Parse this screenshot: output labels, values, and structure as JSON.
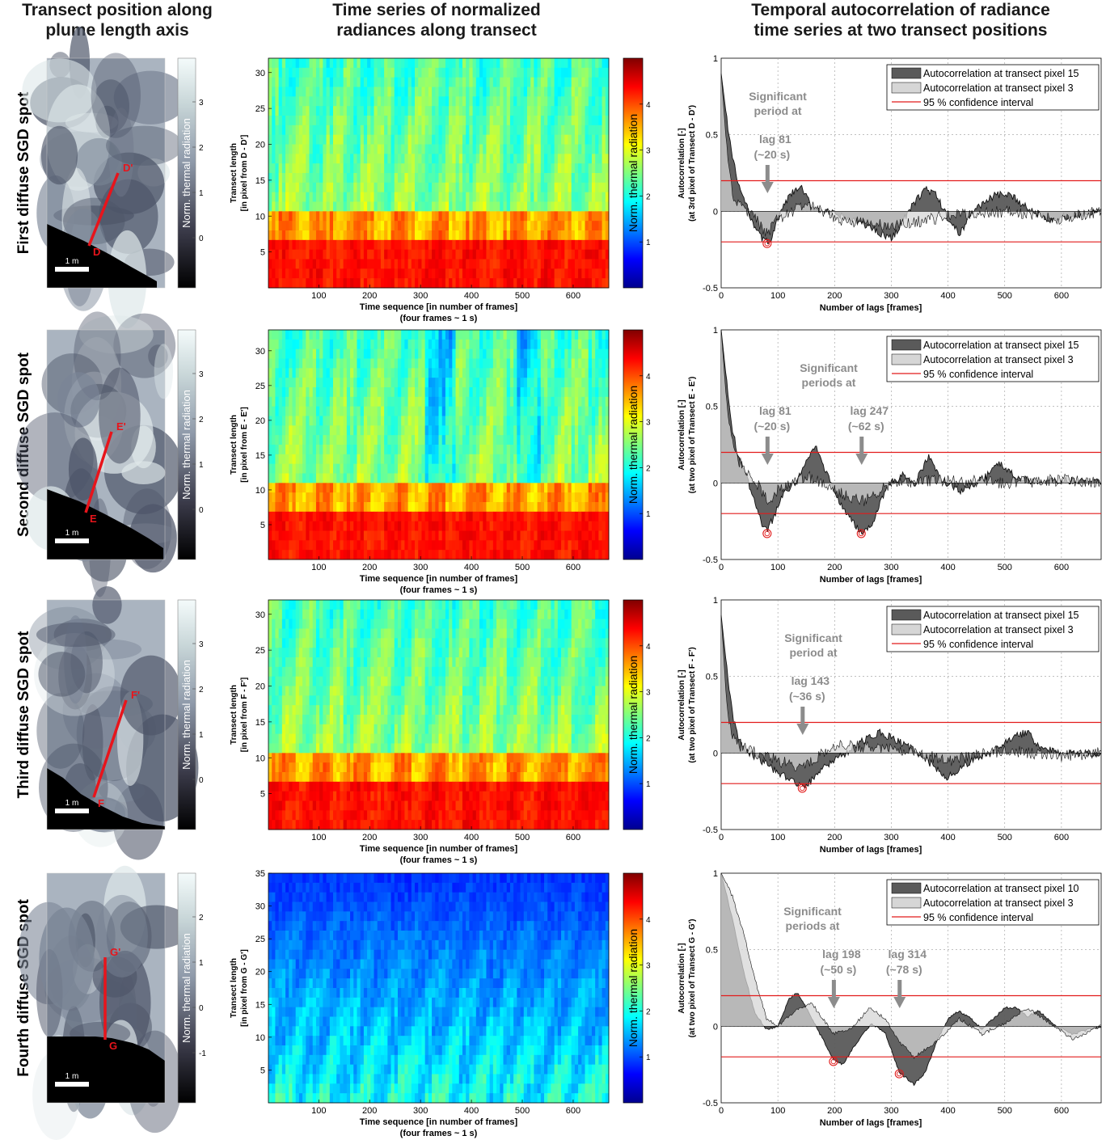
{
  "column_titles": [
    [
      "Transect position along",
      "plume length axis"
    ],
    [
      "Time series of normalized",
      "radiances along transect"
    ],
    [
      "Temporal autocorrelation of radiance",
      "time series at two transect positions"
    ]
  ],
  "scale_bar_label": "1 m",
  "image_colorbar_label": "Norm. thermal radiation",
  "heatmap_colorbar_label": "Norm. thermal radiation",
  "heatmap_xlabel": "Time sequence [in number of frames]",
  "heatmap_xlabel2": "(four frames ~ 1 s)",
  "heatmap_ylabel1": "Transect length",
  "acf_xlabel": "Number of lags [frames]",
  "acf_ylabel1": "Autocorrelation [-]",
  "colors": {
    "transect_line": "#e8141b",
    "confidence_line": "#e21b1b",
    "acf_main_fill": "#5a5a5a",
    "acf_ref_fill": "#d6d6d6",
    "annotation_gray": "#8c8c8c"
  },
  "rows": [
    {
      "spot_label": "First diffuse SGD spot",
      "start_label": "D",
      "end_label": "D'",
      "image_cbar_ticks": [
        "0",
        "1",
        "2",
        "3"
      ],
      "heatmap_ylabel2": "[in pixel from D - D']",
      "acf_ylabel2": "(at 3rd pixel of Transect D - D')",
      "annotation_lines": [
        "Significant",
        "period at"
      ],
      "lags": [
        {
          "lag": 81,
          "label1": "lag 81",
          "label2": "(~20 s)"
        }
      ]
    },
    {
      "spot_label": "Second diffuse SGD spot",
      "start_label": "E",
      "end_label": "E'",
      "image_cbar_ticks": [
        "0",
        "1",
        "2",
        "3"
      ],
      "heatmap_ylabel2": "[in pixel from E - E']",
      "acf_ylabel2": "(at two pixel of Transect E - E')",
      "annotation_lines": [
        "Significant",
        "periods at"
      ],
      "lags": [
        {
          "lag": 81,
          "label1": "lag 81",
          "label2": "(~20 s)"
        },
        {
          "lag": 247,
          "label1": "lag 247",
          "label2": "(~62 s)"
        }
      ]
    },
    {
      "spot_label": "Third diffuse SGD spot",
      "start_label": "F",
      "end_label": "F'",
      "image_cbar_ticks": [
        "0",
        "1",
        "2",
        "3"
      ],
      "heatmap_ylabel2": "[in pixel from F - F']",
      "acf_ylabel2": "(at two pixel of Transect F - F')",
      "annotation_lines": [
        "Significant",
        "period at"
      ],
      "lags": [
        {
          "lag": 143,
          "label1": "lag 143",
          "label2": "(~36 s)"
        }
      ]
    },
    {
      "spot_label": "Fourth diffuse SGD spot",
      "start_label": "G",
      "end_label": "G'",
      "image_cbar_ticks": [
        "-1",
        "0",
        "1",
        "2"
      ],
      "heatmap_ylabel2": "[in pixel from G - G']",
      "acf_ylabel2": "(at two pixel of Transect G - G')",
      "annotation_lines": [
        "Significant",
        "periods at"
      ],
      "lags": [
        {
          "lag": 198,
          "label1": "lag 198",
          "label2": "(~50 s)"
        },
        {
          "lag": 314,
          "label1": "lag 314",
          "label2": "(~78 s)"
        }
      ]
    }
  ],
  "chart_data": [
    {
      "type": "heatmap",
      "description": "Time series of normalized radiances along transect (one per SGD spot)",
      "xlabel": "Time sequence [in number of frames]",
      "x_ticks": [
        100,
        200,
        300,
        400,
        500,
        600
      ],
      "xlim": [
        1,
        670
      ],
      "colorbar_label": "Norm. thermal radiation",
      "colorbar_ticks": [
        1,
        2,
        3,
        4
      ],
      "colorbar_range": [
        0,
        5
      ],
      "panels": [
        {
          "ylabel": "Transect length [in pixel from D - D']",
          "y_ticks": [
            5,
            10,
            15,
            20,
            25,
            30
          ],
          "ylim": [
            0,
            32
          ]
        },
        {
          "ylabel": "Transect length [in pixel from E - E']",
          "y_ticks": [
            5,
            10,
            15,
            20,
            25,
            30
          ],
          "ylim": [
            0,
            33
          ]
        },
        {
          "ylabel": "Transect length [in pixel from F - F']",
          "y_ticks": [
            5,
            10,
            15,
            20,
            25,
            30
          ],
          "ylim": [
            0,
            32
          ]
        },
        {
          "ylabel": "Transect length [in pixel from G - G']",
          "y_ticks": [
            5,
            10,
            15,
            20,
            25,
            30,
            35
          ],
          "ylim": [
            0,
            35
          ]
        }
      ]
    },
    {
      "type": "area",
      "description": "Temporal autocorrelation of radiance time series at two transect positions",
      "xlabel": "Number of lags [frames]",
      "ylabel": "Autocorrelation [-]",
      "x_ticks": [
        0,
        100,
        200,
        300,
        400,
        500,
        600
      ],
      "xlim": [
        0,
        670
      ],
      "y_ticks": [
        -0.5,
        0,
        0.5,
        1
      ],
      "ylim": [
        -0.5,
        1
      ],
      "confidence_interval": [
        -0.2,
        0.2
      ],
      "panels": [
        {
          "legend": [
            "Autocorrelation at  transect pixel 15",
            "Autocorrelation at  transect pixel 3",
            "95 % confidence interval"
          ],
          "significant_lags": [
            81
          ],
          "series": [
            {
              "name": "Autocorrelation at  transect pixel 15",
              "lags": [
                0,
                10,
                20,
                30,
                40,
                50,
                60,
                70,
                81,
                90,
                100,
                120,
                140,
                160,
                200,
                250,
                300,
                340,
                360,
                380,
                400,
                420,
                440,
                460,
                480,
                500,
                520,
                540,
                580,
                620,
                670
              ],
              "values": [
                0.9,
                0.6,
                0.35,
                0.18,
                0.08,
                -0.02,
                -0.1,
                -0.17,
                -0.2,
                -0.17,
                -0.05,
                0.1,
                0.16,
                0.03,
                -0.02,
                -0.08,
                -0.18,
                0.05,
                0.15,
                0.1,
                -0.05,
                -0.15,
                -0.02,
                0.05,
                0.1,
                0.11,
                0.08,
                0.02,
                -0.05,
                -0.03,
                0.0
              ]
            },
            {
              "name": "Autocorrelation at  transect pixel 3",
              "lags": [
                0,
                10,
                20,
                30,
                40,
                60,
                81,
                100,
                150,
                200,
                300,
                400,
                500,
                600,
                670
              ],
              "values": [
                0.9,
                0.4,
                0.1,
                0.05,
                0.02,
                -0.05,
                -0.15,
                -0.05,
                0.05,
                -0.05,
                -0.1,
                -0.03,
                0.0,
                -0.05,
                0.0
              ]
            }
          ]
        },
        {
          "legend": [
            "Autocorrelation at  transect pixel 15",
            "Autocorrelation at  transect pixel 3",
            "95 % confidence interval"
          ],
          "significant_lags": [
            81,
            247
          ],
          "series": [
            {
              "name": "Autocorrelation at  transect pixel 15",
              "lags": [
                0,
                10,
                20,
                30,
                40,
                50,
                60,
                70,
                81,
                95,
                110,
                130,
                150,
                165,
                180,
                200,
                220,
                247,
                265,
                280,
                300,
                320,
                340,
                365,
                390,
                420,
                450,
                470,
                490,
                520,
                560,
                600,
                670
              ],
              "values": [
                1.0,
                0.65,
                0.35,
                0.18,
                0.08,
                -0.02,
                -0.12,
                -0.25,
                -0.32,
                -0.2,
                -0.06,
                0.0,
                0.14,
                0.24,
                0.12,
                -0.05,
                -0.2,
                -0.32,
                -0.28,
                -0.12,
                0.0,
                0.05,
                -0.02,
                0.17,
                0.02,
                -0.05,
                0.0,
                0.05,
                0.13,
                0.04,
                0.0,
                0.02,
                0.0
              ]
            },
            {
              "name": "Autocorrelation at  transect pixel 3",
              "lags": [
                0,
                10,
                20,
                30,
                40,
                60,
                81,
                100,
                150,
                200,
                250,
                300,
                400,
                500,
                600,
                670
              ],
              "values": [
                1.0,
                0.5,
                0.25,
                0.15,
                0.1,
                0.02,
                -0.12,
                -0.05,
                0.05,
                -0.05,
                -0.12,
                0.0,
                0.02,
                0.0,
                0.02,
                0.0
              ]
            }
          ]
        },
        {
          "legend": [
            "Autocorrelation at  transect pixel 15",
            "Autocorrelation at  transect pixel 3",
            "95 % confidence interval"
          ],
          "significant_lags": [
            143
          ],
          "series": [
            {
              "name": "Autocorrelation at  transect pixel 15",
              "lags": [
                0,
                10,
                20,
                30,
                40,
                50,
                70,
                90,
                110,
                130,
                143,
                160,
                180,
                200,
                220,
                250,
                280,
                300,
                340,
                380,
                400,
                440,
                480,
                500,
                520,
                540,
                560,
                600,
                640,
                670
              ],
              "values": [
                0.9,
                0.55,
                0.25,
                0.1,
                0.03,
                0.0,
                -0.05,
                -0.1,
                -0.15,
                -0.2,
                -0.22,
                -0.18,
                -0.1,
                -0.05,
                0.0,
                0.08,
                0.13,
                0.1,
                0.02,
                -0.1,
                -0.16,
                -0.05,
                0.0,
                0.08,
                0.12,
                0.13,
                0.05,
                0.0,
                0.0,
                0.0
              ]
            },
            {
              "name": "Autocorrelation at  transect pixel 3",
              "lags": [
                0,
                10,
                20,
                30,
                60,
                100,
                143,
                200,
                300,
                400,
                500,
                600,
                670
              ],
              "values": [
                0.9,
                0.3,
                0.1,
                0.05,
                0.0,
                -0.05,
                -0.1,
                0.05,
                0.03,
                -0.05,
                0.02,
                -0.02,
                0.0
              ]
            }
          ]
        },
        {
          "legend": [
            "Autocorrelation at  transect pixel 10",
            "Autocorrelation at  transect pixel 3",
            "95 % confidence interval"
          ],
          "significant_lags": [
            198,
            314
          ],
          "series": [
            {
              "name": "Autocorrelation at  transect pixel 10",
              "lags": [
                0,
                20,
                40,
                60,
                80,
                100,
                120,
                135,
                150,
                170,
                198,
                215,
                240,
                265,
                290,
                314,
                340,
                360,
                380,
                400,
                420,
                440,
                460,
                480,
                500,
                520,
                540,
                560,
                590,
                620,
                670
              ],
              "values": [
                1.0,
                0.7,
                0.35,
                0.08,
                -0.02,
                0.0,
                0.18,
                0.22,
                0.12,
                -0.02,
                -0.22,
                -0.25,
                -0.1,
                0.02,
                -0.05,
                -0.3,
                -0.38,
                -0.3,
                -0.1,
                0.05,
                0.1,
                0.05,
                -0.02,
                0.05,
                0.12,
                0.12,
                0.06,
                0.1,
                0.0,
                -0.05,
                0.0
              ]
            },
            {
              "name": "Autocorrelation at  transect pixel 3",
              "lags": [
                0,
                20,
                40,
                60,
                80,
                100,
                130,
                160,
                198,
                230,
                260,
                290,
                314,
                340,
                380,
                420,
                460,
                500,
                540,
                580,
                620,
                670
              ],
              "values": [
                1.0,
                0.85,
                0.6,
                0.3,
                0.05,
                0.0,
                0.1,
                0.15,
                -0.05,
                -0.02,
                0.12,
                0.05,
                -0.1,
                -0.2,
                -0.1,
                0.05,
                -0.05,
                0.02,
                0.12,
                0.02,
                -0.08,
                0.0
              ]
            }
          ]
        }
      ]
    }
  ]
}
